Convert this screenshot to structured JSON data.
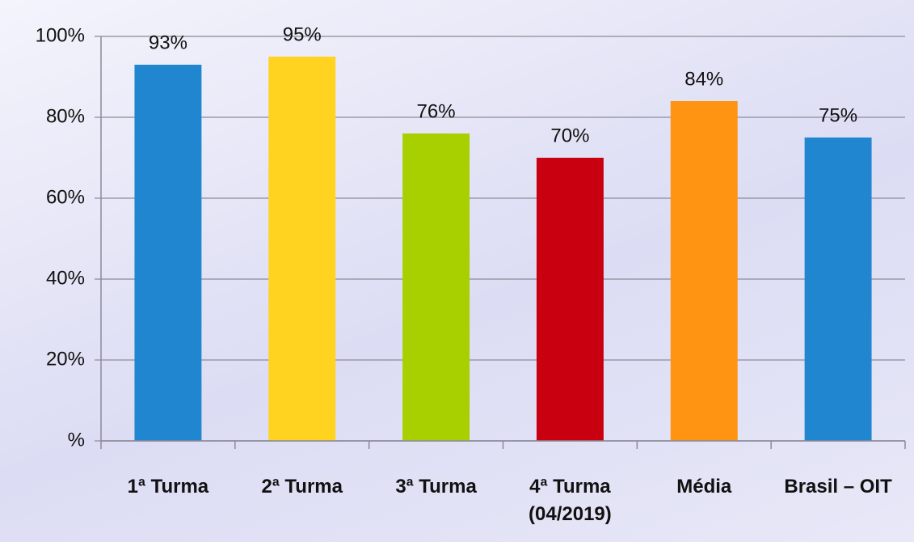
{
  "chart_data": {
    "type": "bar",
    "categories": [
      "1ª Turma",
      "2ª Turma",
      "3ª Turma",
      "4ª Turma (04/2019)",
      "Média",
      "Brasil – OIT"
    ],
    "values": [
      93,
      95,
      76,
      70,
      84,
      75
    ],
    "value_labels": [
      "93%",
      "95%",
      "76%",
      "70%",
      "84%",
      "75%"
    ],
    "colors": [
      "#1f86cf",
      "#ffd320",
      "#a8cf00",
      "#c8000f",
      "#ff9312",
      "#1f86cf"
    ],
    "ylim": [
      0,
      100
    ],
    "yticks": [
      {
        "value": 0,
        "label": "%"
      },
      {
        "value": 20,
        "label": "20%"
      },
      {
        "value": 40,
        "label": "40%"
      },
      {
        "value": 60,
        "label": "60%"
      },
      {
        "value": 80,
        "label": "80%"
      },
      {
        "value": 100,
        "label": "100%"
      }
    ],
    "grid": true
  }
}
